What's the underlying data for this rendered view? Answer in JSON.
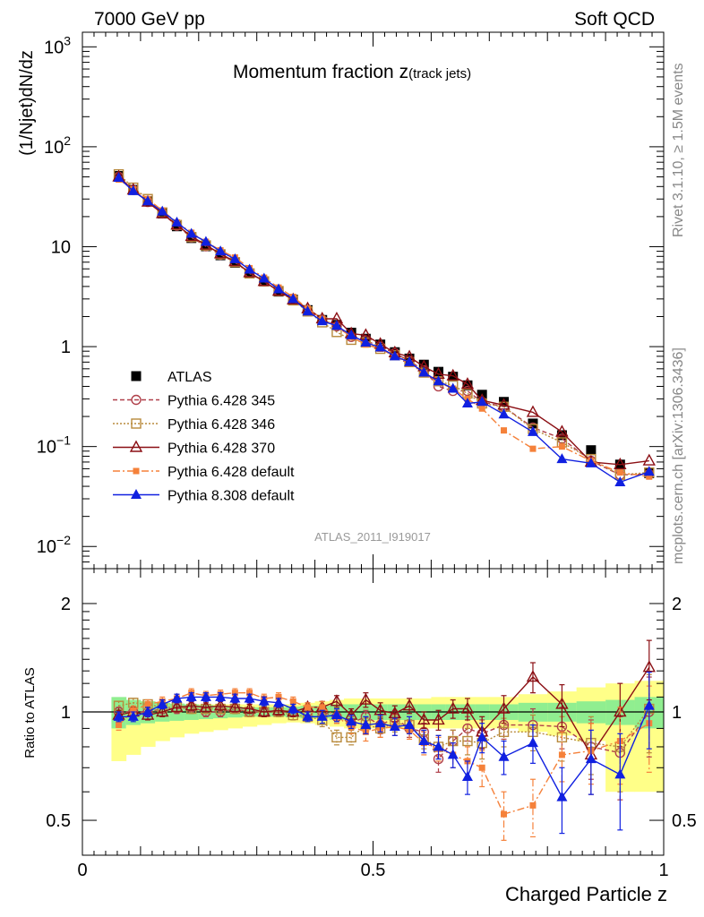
{
  "header": {
    "beam": "7000 GeV pp",
    "process": "Soft QCD",
    "title_main": "Momentum fraction z",
    "title_sub": "(track jets)",
    "analysis_id": "ATLAS_2011_I919017",
    "side_top": "Rivet 3.1.10, ≥ 1.5M events",
    "side_bottom": "mcplots.cern.ch [arXiv:1306.3436]"
  },
  "colors": {
    "atlas": "#000000",
    "p345": "#b0404a",
    "p346": "#b88a3c",
    "p370": "#8b0f14",
    "p6def": "#f5813a",
    "p8def": "#1020e0",
    "band_inner": "#90ee90",
    "band_outer": "#ffff88"
  },
  "chart_data": [
    {
      "type": "line",
      "panel": "main",
      "ylabel": "(1/Njet)dN/dz",
      "yscale": "log",
      "ylim": [
        0.006,
        1400
      ],
      "xlim": [
        0,
        1
      ],
      "yticks": [
        {
          "value": 1000,
          "base": "10",
          "exp": "3"
        },
        {
          "value": 100,
          "base": "10",
          "exp": "2"
        },
        {
          "value": 10,
          "base": "10",
          "exp": ""
        },
        {
          "value": 1,
          "base": "1",
          "exp": ""
        },
        {
          "value": 0.1,
          "base": "10",
          "exp": "−1"
        },
        {
          "value": 0.01,
          "base": "10",
          "exp": "−2"
        }
      ],
      "x": [
        0.0625,
        0.0875,
        0.1125,
        0.1375,
        0.1625,
        0.1875,
        0.2125,
        0.2375,
        0.2625,
        0.2875,
        0.3125,
        0.3375,
        0.3625,
        0.3875,
        0.4125,
        0.4375,
        0.4625,
        0.4875,
        0.5125,
        0.5375,
        0.5625,
        0.5875,
        0.6125,
        0.6375,
        0.6625,
        0.6875,
        0.725,
        0.775,
        0.825,
        0.875,
        0.925,
        0.975
      ],
      "series": [
        {
          "key": "atlas",
          "name": "ATLAS",
          "marker": "filled-square",
          "line": "none",
          "values": [
            51,
            37,
            28.5,
            21.5,
            16,
            12.2,
            10.1,
            8.2,
            6.9,
            5.4,
            4.5,
            3.55,
            2.95,
            2.32,
            1.85,
            1.65,
            1.38,
            1.2,
            1.05,
            0.88,
            0.76,
            0.66,
            0.56,
            0.5,
            0.41,
            0.33,
            0.28,
            0.17,
            0.13,
            0.092,
            0.066,
            0.054
          ]
        },
        {
          "key": "p345",
          "name": "Pythia 6.428 345",
          "marker": "open-circle",
          "line": "dashed",
          "values": [
            50,
            37,
            28,
            21.5,
            16.2,
            12.4,
            10.1,
            8.3,
            7.0,
            5.5,
            4.5,
            3.6,
            2.95,
            2.3,
            1.85,
            1.6,
            1.25,
            1.15,
            1.0,
            0.86,
            0.72,
            0.58,
            0.4,
            0.36,
            0.36,
            0.28,
            0.25,
            0.155,
            0.12,
            0.072,
            0.052,
            0.053
          ]
        },
        {
          "key": "p346",
          "name": "Pythia 6.428 346",
          "marker": "open-square",
          "line": "dotted",
          "values": [
            53,
            39,
            30,
            22,
            16.5,
            12.5,
            10.3,
            8.4,
            7.0,
            5.4,
            4.5,
            3.6,
            2.9,
            2.25,
            1.75,
            1.4,
            1.17,
            1.1,
            0.95,
            0.82,
            0.7,
            0.55,
            0.45,
            0.41,
            0.34,
            0.27,
            0.25,
            0.15,
            0.11,
            0.075,
            0.052,
            0.055
          ]
        },
        {
          "key": "p370",
          "name": "Pythia 6.428 370",
          "marker": "open-triangle",
          "line": "solid",
          "values": [
            50,
            37,
            28,
            21.5,
            16.5,
            12.7,
            10.4,
            8.5,
            7.1,
            5.5,
            4.5,
            3.6,
            2.95,
            2.4,
            1.9,
            1.9,
            1.35,
            1.3,
            1.06,
            0.87,
            0.79,
            0.63,
            0.53,
            0.51,
            0.42,
            0.29,
            0.26,
            0.22,
            0.14,
            0.07,
            0.066,
            0.072
          ]
        },
        {
          "key": "p6def",
          "name": "Pythia 6.428 default",
          "marker": "filled-square-small",
          "line": "dashdot",
          "values": [
            47,
            37.5,
            30,
            23,
            17.5,
            13.8,
            11.2,
            9.2,
            7.8,
            6.1,
            4.9,
            3.9,
            3.15,
            2.4,
            1.9,
            1.6,
            1.25,
            1.05,
            0.95,
            0.8,
            0.68,
            0.54,
            0.44,
            0.38,
            0.3,
            0.24,
            0.145,
            0.095,
            0.1,
            0.072,
            0.055,
            0.05
          ]
        },
        {
          "key": "p8def",
          "name": "Pythia 8.308 default",
          "marker": "filled-triangle",
          "line": "solid",
          "values": [
            49,
            36,
            28.5,
            22.5,
            17.5,
            13.5,
            11.2,
            9.0,
            7.5,
            5.9,
            4.8,
            3.75,
            3.0,
            2.25,
            1.8,
            1.62,
            1.3,
            1.1,
            0.98,
            0.8,
            0.7,
            0.55,
            0.45,
            0.38,
            0.27,
            0.28,
            0.21,
            0.14,
            0.075,
            0.068,
            0.044,
            0.056
          ]
        }
      ]
    },
    {
      "type": "line",
      "panel": "ratio",
      "ylabel": "Ratio to ATLAS",
      "xlabel": "Charged Particle z",
      "yscale": "log",
      "ylim": [
        0.4,
        2.5
      ],
      "xlim": [
        0,
        1
      ],
      "yticks": [
        "0.5",
        "1",
        "2"
      ],
      "xticks": [
        "0",
        "0.5",
        "1"
      ],
      "x": [
        0.0625,
        0.0875,
        0.1125,
        0.1375,
        0.1625,
        0.1875,
        0.2125,
        0.2375,
        0.2625,
        0.2875,
        0.3125,
        0.3375,
        0.3625,
        0.3875,
        0.4125,
        0.4375,
        0.4625,
        0.4875,
        0.5125,
        0.5375,
        0.5625,
        0.5875,
        0.6125,
        0.6375,
        0.6625,
        0.6875,
        0.725,
        0.775,
        0.825,
        0.875,
        0.925,
        0.975
      ],
      "bands": {
        "edges": [
          0.05,
          0.075,
          0.1,
          0.125,
          0.15,
          0.175,
          0.2,
          0.225,
          0.25,
          0.275,
          0.3,
          0.325,
          0.35,
          0.375,
          0.4,
          0.425,
          0.45,
          0.475,
          0.5,
          0.525,
          0.55,
          0.575,
          0.6,
          0.625,
          0.65,
          0.675,
          0.7,
          0.75,
          0.8,
          0.85,
          0.9,
          0.95,
          1.0
        ],
        "inner": [
          0.1,
          0.08,
          0.07,
          0.06,
          0.055,
          0.05,
          0.045,
          0.04,
          0.035,
          0.03,
          0.03,
          0.03,
          0.035,
          0.04,
          0.04,
          0.05,
          0.05,
          0.05,
          0.05,
          0.05,
          0.05,
          0.05,
          0.05,
          0.05,
          0.05,
          0.05,
          0.05,
          0.06,
          0.06,
          0.07,
          0.08,
          0.1
        ],
        "outer": [
          0.27,
          0.24,
          0.2,
          0.17,
          0.15,
          0.13,
          0.12,
          0.11,
          0.1,
          0.09,
          0.08,
          0.07,
          0.065,
          0.07,
          0.08,
          0.09,
          0.1,
          0.1,
          0.1,
          0.1,
          0.1,
          0.1,
          0.1,
          0.1,
          0.1,
          0.1,
          0.1,
          0.12,
          0.14,
          0.17,
          0.4,
          0.4
        ],
        "outer_up": [
          0.08,
          0.08,
          0.07,
          0.06,
          0.05,
          0.05,
          0.05,
          0.05,
          0.05,
          0.05,
          0.05,
          0.05,
          0.05,
          0.06,
          0.07,
          0.08,
          0.09,
          0.09,
          0.09,
          0.09,
          0.09,
          0.09,
          0.1,
          0.1,
          0.1,
          0.1,
          0.1,
          0.12,
          0.14,
          0.17,
          0.2,
          0.22
        ]
      },
      "series": [
        {
          "key": "p345",
          "values": [
            1.0,
            1.0,
            1.0,
            1.02,
            1.02,
            1.03,
            1.0,
            1.0,
            1.02,
            1.0,
            1.0,
            1.0,
            1.0,
            1.0,
            1.0,
            0.97,
            0.93,
            0.97,
            0.92,
            0.96,
            0.9,
            0.88,
            0.74,
            0.83,
            0.9,
            0.87,
            0.92,
            0.92,
            0.91,
            0.8,
            0.77,
            1.0
          ],
          "err": [
            0.03,
            0.03,
            0.03,
            0.03,
            0.03,
            0.03,
            0.03,
            0.03,
            0.03,
            0.03,
            0.03,
            0.03,
            0.03,
            0.03,
            0.03,
            0.04,
            0.04,
            0.04,
            0.05,
            0.05,
            0.05,
            0.05,
            0.06,
            0.06,
            0.07,
            0.08,
            0.08,
            0.1,
            0.12,
            0.15,
            0.2,
            0.25
          ]
        },
        {
          "key": "p346",
          "values": [
            1.04,
            1.06,
            1.05,
            1.03,
            1.03,
            1.02,
            1.02,
            1.02,
            1.02,
            1.0,
            1.0,
            1.0,
            0.98,
            0.97,
            0.95,
            0.85,
            0.85,
            0.92,
            0.9,
            0.93,
            0.92,
            0.84,
            0.8,
            0.83,
            0.83,
            0.82,
            0.88,
            0.88,
            0.85,
            0.82,
            0.8,
            1.02
          ],
          "err": [
            0.03,
            0.03,
            0.03,
            0.03,
            0.03,
            0.03,
            0.03,
            0.03,
            0.03,
            0.03,
            0.03,
            0.03,
            0.03,
            0.03,
            0.04,
            0.04,
            0.04,
            0.04,
            0.05,
            0.05,
            0.05,
            0.05,
            0.06,
            0.06,
            0.07,
            0.08,
            0.08,
            0.1,
            0.12,
            0.15,
            0.2,
            0.25
          ]
        },
        {
          "key": "p370",
          "values": [
            0.98,
            1.0,
            0.98,
            1.0,
            1.03,
            1.04,
            1.03,
            1.04,
            1.03,
            1.02,
            1.0,
            1.01,
            1.0,
            1.03,
            1.03,
            1.07,
            0.98,
            1.08,
            1.01,
            0.99,
            1.04,
            0.95,
            0.95,
            1.02,
            1.02,
            0.88,
            1.02,
            1.25,
            1.05,
            0.76,
            1.0,
            1.33
          ],
          "err": [
            0.03,
            0.03,
            0.03,
            0.03,
            0.03,
            0.03,
            0.03,
            0.03,
            0.03,
            0.03,
            0.03,
            0.03,
            0.03,
            0.03,
            0.04,
            0.04,
            0.04,
            0.05,
            0.05,
            0.05,
            0.05,
            0.05,
            0.06,
            0.06,
            0.07,
            0.09,
            0.09,
            0.12,
            0.14,
            0.17,
            0.2,
            0.25
          ]
        },
        {
          "key": "p6def",
          "values": [
            0.92,
            1.01,
            1.05,
            1.07,
            1.09,
            1.13,
            1.11,
            1.12,
            1.13,
            1.13,
            1.09,
            1.1,
            1.07,
            1.03,
            1.03,
            0.97,
            0.91,
            0.88,
            0.9,
            0.91,
            0.89,
            0.82,
            0.79,
            0.76,
            0.73,
            0.7,
            0.52,
            0.55,
            0.76,
            0.78,
            0.83,
            0.93
          ],
          "err": [
            0.03,
            0.03,
            0.03,
            0.03,
            0.03,
            0.03,
            0.03,
            0.03,
            0.03,
            0.03,
            0.03,
            0.03,
            0.03,
            0.03,
            0.04,
            0.04,
            0.04,
            0.05,
            0.05,
            0.05,
            0.05,
            0.06,
            0.06,
            0.06,
            0.07,
            0.08,
            0.08,
            0.1,
            0.12,
            0.15,
            0.2,
            0.25
          ]
        },
        {
          "key": "p8def",
          "values": [
            0.97,
            0.97,
            1.0,
            1.05,
            1.09,
            1.1,
            1.1,
            1.1,
            1.09,
            1.09,
            1.07,
            1.06,
            1.02,
            0.97,
            0.97,
            0.98,
            0.94,
            0.92,
            0.93,
            0.91,
            0.92,
            0.83,
            0.8,
            0.76,
            0.66,
            0.85,
            0.75,
            0.82,
            0.58,
            0.74,
            0.67,
            1.04
          ],
          "err": [
            0.03,
            0.03,
            0.03,
            0.03,
            0.03,
            0.03,
            0.03,
            0.03,
            0.03,
            0.03,
            0.03,
            0.03,
            0.03,
            0.03,
            0.04,
            0.04,
            0.04,
            0.05,
            0.05,
            0.05,
            0.05,
            0.06,
            0.06,
            0.06,
            0.07,
            0.08,
            0.08,
            0.1,
            0.12,
            0.15,
            0.2,
            0.25
          ]
        }
      ]
    }
  ]
}
